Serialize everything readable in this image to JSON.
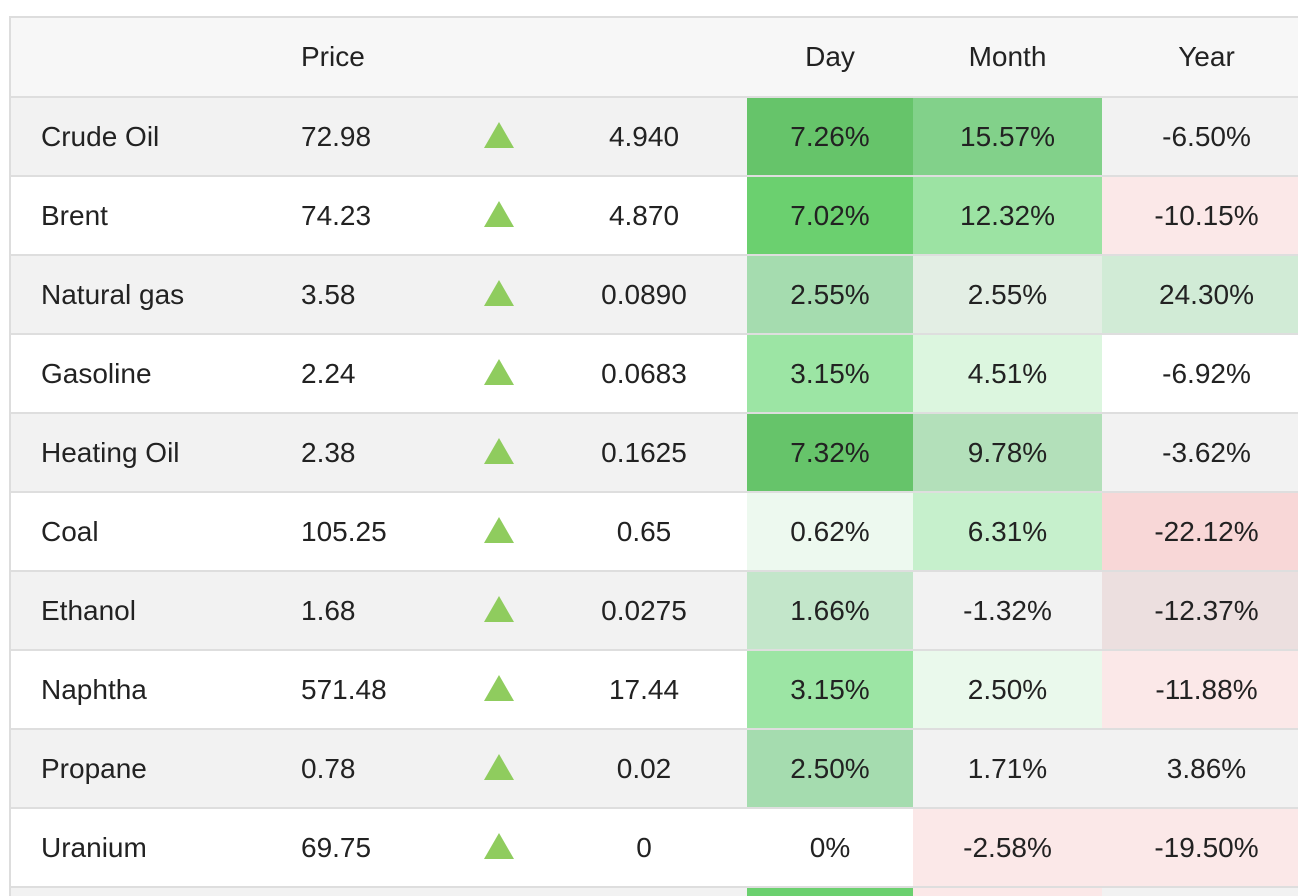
{
  "headers": {
    "name": "",
    "price": "Price",
    "arrow": "",
    "change": "",
    "day": "Day",
    "month": "Month",
    "year": "Year"
  },
  "colors": {
    "up_arrow": "#8fcc5e",
    "header_bg": "#f7f7f7",
    "odd_row_bg": "#f2f2f2"
  },
  "rows": [
    {
      "name": "Crude Oil",
      "price": "72.98",
      "direction": "up-arrow-icon",
      "change": "4.940",
      "day": "7.26%",
      "month": "15.57%",
      "year": "-6.50%",
      "day_bg": "#66c46a",
      "month_bg": "#82d18a",
      "year_bg": ""
    },
    {
      "name": "Brent",
      "price": "74.23",
      "direction": "up-arrow-icon",
      "change": "4.870",
      "day": "7.02%",
      "month": "12.32%",
      "year": "-10.15%",
      "day_bg": "#6bd06f",
      "month_bg": "#9ce3a3",
      "year_bg": "#fbe8e8"
    },
    {
      "name": "Natural gas",
      "price": "3.58",
      "direction": "up-arrow-icon",
      "change": "0.0890",
      "day": "2.55%",
      "month": "2.55%",
      "year": "24.30%",
      "day_bg": "#a5dcaf",
      "month_bg": "#e3eee4",
      "year_bg": "#d1ebd6"
    },
    {
      "name": "Gasoline",
      "price": "2.24",
      "direction": "up-arrow-icon",
      "change": "0.0683",
      "day": "3.15%",
      "month": "4.51%",
      "year": "-6.92%",
      "day_bg": "#9ce5a4",
      "month_bg": "#dcf6df",
      "year_bg": ""
    },
    {
      "name": "Heating Oil",
      "price": "2.38",
      "direction": "up-arrow-icon",
      "change": "0.1625",
      "day": "7.32%",
      "month": "9.78%",
      "year": "-3.62%",
      "day_bg": "#66c46a",
      "month_bg": "#b3e0ba",
      "year_bg": ""
    },
    {
      "name": "Coal",
      "price": "105.25",
      "direction": "up-arrow-icon",
      "change": "0.65",
      "day": "0.62%",
      "month": "6.31%",
      "year": "-22.12%",
      "day_bg": "#edf9ef",
      "month_bg": "#c6f0cc",
      "year_bg": "#f8d7d7"
    },
    {
      "name": "Ethanol",
      "price": "1.68",
      "direction": "up-arrow-icon",
      "change": "0.0275",
      "day": "1.66%",
      "month": "-1.32%",
      "year": "-12.37%",
      "day_bg": "#c3e6ca",
      "month_bg": "",
      "year_bg": "#ecdfdf"
    },
    {
      "name": "Naphtha",
      "price": "571.48",
      "direction": "up-arrow-icon",
      "change": "17.44",
      "day": "3.15%",
      "month": "2.50%",
      "year": "-11.88%",
      "day_bg": "#9ce5a4",
      "month_bg": "#eaf9ec",
      "year_bg": "#fbe8e8"
    },
    {
      "name": "Propane",
      "price": "0.78",
      "direction": "up-arrow-icon",
      "change": "0.02",
      "day": "2.50%",
      "month": "1.71%",
      "year": "3.86%",
      "day_bg": "#a5dcaf",
      "month_bg": "",
      "year_bg": ""
    },
    {
      "name": "Uranium",
      "price": "69.75",
      "direction": "up-arrow-icon",
      "change": "0",
      "day": "0%",
      "month": "-2.58%",
      "year": "-19.50%",
      "day_bg": "",
      "month_bg": "#fbe8e8",
      "year_bg": "#fbe8e8"
    }
  ],
  "partial_row": {
    "day_bg": "#6bd06f",
    "month_bg": "#fbe8e8",
    "year_bg": ""
  }
}
